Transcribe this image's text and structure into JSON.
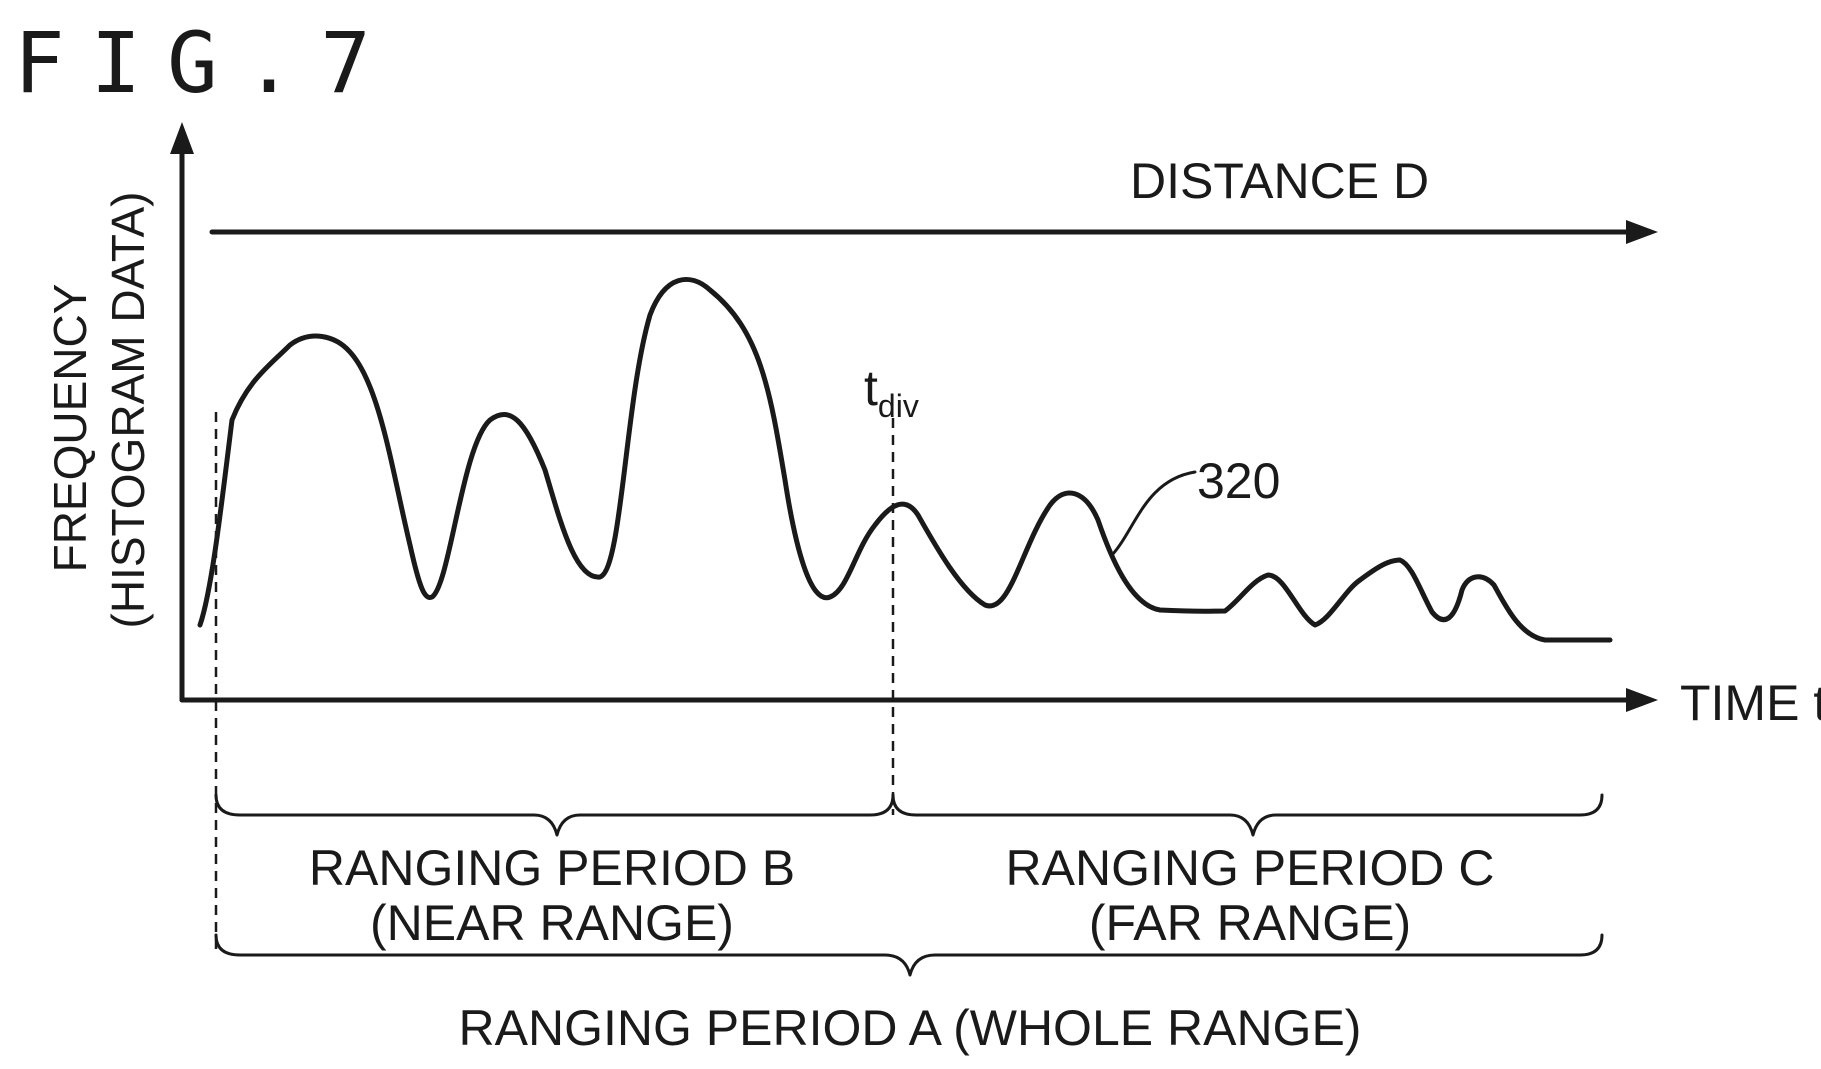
{
  "figure": {
    "title": "FIG.7"
  },
  "axes": {
    "y_label_line1": "FREQUENCY",
    "y_label_line2": "(HISTOGRAM DATA)",
    "x_label": "TIME t",
    "distance_label": "DISTANCE D"
  },
  "markers": {
    "tdiv_main": "t",
    "tdiv_sub": "div",
    "curve_ref": "320"
  },
  "periods": {
    "b_line1": "RANGING PERIOD B",
    "b_line2": "(NEAR RANGE)",
    "c_line1": "RANGING PERIOD C",
    "c_line2": "(FAR RANGE)",
    "a_label": "RANGING PERIOD A (WHOLE RANGE)"
  }
}
